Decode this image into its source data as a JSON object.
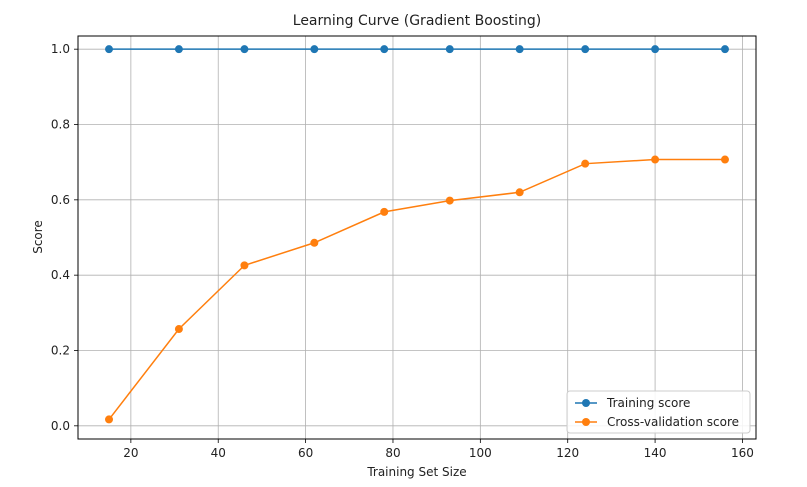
{
  "chart_data": {
    "type": "line",
    "title": "Learning Curve (Gradient Boosting)",
    "xlabel": "Training Set Size",
    "ylabel": "Score",
    "x": [
      15,
      31,
      46,
      62,
      78,
      93,
      109,
      124,
      140,
      156
    ],
    "xlim": [
      7.9,
      163.1
    ],
    "ylim": [
      -0.035,
      1.035
    ],
    "xticks": [
      20,
      40,
      60,
      80,
      100,
      120,
      140,
      160
    ],
    "yticks": [
      0.0,
      0.2,
      0.4,
      0.6,
      0.8,
      1.0
    ],
    "xtick_labels": [
      "20",
      "40",
      "60",
      "80",
      "100",
      "120",
      "140",
      "160"
    ],
    "ytick_labels": [
      "0.0",
      "0.2",
      "0.4",
      "0.6",
      "0.8",
      "1.0"
    ],
    "grid": true,
    "legend_position": "bottom-right",
    "series": [
      {
        "name": "Training score",
        "color": "#1f77b4",
        "values": [
          1.0,
          1.0,
          1.0,
          1.0,
          1.0,
          1.0,
          1.0,
          1.0,
          1.0,
          1.0
        ]
      },
      {
        "name": "Cross-validation score",
        "color": "#ff7f0e",
        "values": [
          0.017,
          0.257,
          0.426,
          0.486,
          0.568,
          0.598,
          0.62,
          0.696,
          0.707,
          0.707
        ]
      }
    ]
  }
}
